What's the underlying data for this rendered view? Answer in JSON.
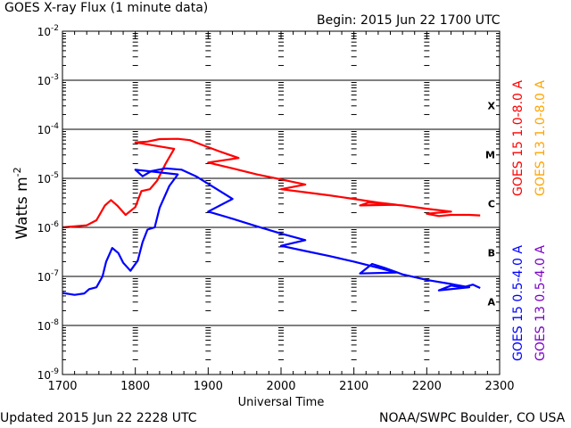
{
  "header": {
    "title": "GOES X-ray Flux (1 minute data)",
    "begin": "Begin: 2015 Jun 22 1700 UTC"
  },
  "footer": {
    "updated": "Updated 2015 Jun 22 2228 UTC",
    "credit": "NOAA/SWPC Boulder, CO USA"
  },
  "colors": {
    "goes15_long": "#ff0000",
    "goes13_long": "#ffa500",
    "goes15_short": "#0000ff",
    "goes13_short": "#7a00c8",
    "frame": "#000000"
  },
  "chart_data": {
    "type": "line",
    "xlabel": "Universal Time",
    "ylabel_base": "Watts m",
    "ylabel_exp": "-2",
    "y_scale": "log",
    "ylim": [
      "1e-9",
      "1e-2"
    ],
    "xlim": [
      1700,
      2300
    ],
    "x_ticks": [
      "1700",
      "1800",
      "1900",
      "2000",
      "2100",
      "2200",
      "2300"
    ],
    "y_ticks": [
      {
        "exp": -9,
        "label_base": "10",
        "label_exp": "-9"
      },
      {
        "exp": -8,
        "label_base": "10",
        "label_exp": "-8"
      },
      {
        "exp": -7,
        "label_base": "10",
        "label_exp": "-7"
      },
      {
        "exp": -6,
        "label_base": "10",
        "label_exp": "-6"
      },
      {
        "exp": -5,
        "label_base": "10",
        "label_exp": "-5"
      },
      {
        "exp": -4,
        "label_base": "10",
        "label_exp": "-4"
      },
      {
        "exp": -3,
        "label_base": "10",
        "label_exp": "-3"
      },
      {
        "exp": -2,
        "label_base": "10",
        "label_exp": "-2"
      }
    ],
    "flare_classes": [
      {
        "label": "A",
        "exp": -8
      },
      {
        "label": "B",
        "exp": -7
      },
      {
        "label": "C",
        "exp": -6
      },
      {
        "label": "M",
        "exp": -5
      },
      {
        "label": "X",
        "exp": -4
      }
    ],
    "grid_lines_y_exp": [
      -8,
      -7,
      -6,
      -5,
      -4,
      -3
    ],
    "legend_placement": "right, vertical",
    "legend": [
      {
        "label": "GOES 15 1.0-8.0 A",
        "color": "#ff0000"
      },
      {
        "label": "GOES 13 1.0-8.0 A",
        "color": "#ffa500"
      },
      {
        "label": "GOES 15 0.5-4.0 A",
        "color": "#0000ff"
      },
      {
        "label": "GOES 13 0.5-4.0 A",
        "color": "#7a00c8"
      }
    ],
    "series": [
      {
        "name": "GOES 15 1.0-8.0 A",
        "color": "#ff0000",
        "points": [
          [
            "1700",
            "1.0e-6"
          ],
          [
            "1720",
            "1.1e-6"
          ],
          [
            "1728",
            "1.4e-6"
          ],
          [
            "1735",
            "2.8e-6"
          ],
          [
            "1740",
            "3.6e-6"
          ],
          [
            "1745",
            "2.8e-6"
          ],
          [
            "1752",
            "1.8e-6"
          ],
          [
            "1760",
            "2.6e-6"
          ],
          [
            "1765",
            "5.5e-6"
          ],
          [
            "1772",
            "6.0e-6"
          ],
          [
            "1778",
            "9.0e-6"
          ],
          [
            "1785",
            "2.0e-5"
          ],
          [
            "1792",
            "4.0e-5"
          ],
          [
            "1800",
            "5.4e-5"
          ],
          [
            "1810",
            "5.6e-5"
          ],
          [
            "1820",
            "6.3e-5"
          ],
          [
            "1835",
            "6.4e-5"
          ],
          [
            "1845",
            "6.0e-5"
          ],
          [
            "1855",
            "4.8e-5"
          ],
          [
            "1870",
            "3.5e-5"
          ],
          [
            "1885",
            "2.6e-5"
          ],
          [
            "1900",
            "2.1e-5"
          ],
          [
            "1920",
            "1.6e-5"
          ],
          [
            "1940",
            "1.2e-5"
          ],
          [
            "1960",
            "9.5e-6"
          ],
          [
            "1980",
            "7.5e-6"
          ],
          [
            "2000",
            "6.0e-6"
          ],
          [
            "2020",
            "5.2e-6"
          ],
          [
            "2040",
            "4.5e-6"
          ],
          [
            "2060",
            "3.8e-6"
          ],
          [
            "2080",
            "3.2e-6"
          ],
          [
            "2095",
            "2.9e-6"
          ],
          [
            "2105",
            "2.8e-6"
          ],
          [
            "2112",
            "3.2e-6"
          ],
          [
            "2120",
            "3.1e-6"
          ],
          [
            "2140",
            "2.8e-6"
          ],
          [
            "2160",
            "2.4e-6"
          ],
          [
            "2180",
            "2.1e-6"
          ],
          [
            "2200",
            "1.9e-6"
          ],
          [
            "2210",
            "1.7e-6"
          ],
          [
            "2220",
            "1.8e-6"
          ],
          [
            "2235",
            "1.8e-6"
          ],
          [
            "2244",
            "1.75e-6"
          ]
        ]
      },
      {
        "name": "GOES 15 0.5-4.0 A",
        "color": "#0000ff",
        "points": [
          [
            "1700",
            "4.6e-8"
          ],
          [
            "1710",
            "4.2e-8"
          ],
          [
            "1718",
            "4.5e-8"
          ],
          [
            "1722",
            "5.5e-8"
          ],
          [
            "1728",
            "6.0e-8"
          ],
          [
            "1733",
            "1.0e-7"
          ],
          [
            "1736",
            "2.0e-7"
          ],
          [
            "1741",
            "3.8e-7"
          ],
          [
            "1746",
            "3.0e-7"
          ],
          [
            "1750",
            "1.9e-7"
          ],
          [
            "1756",
            "1.3e-7"
          ],
          [
            "1762",
            "2.1e-7"
          ],
          [
            "1766",
            "5.0e-7"
          ],
          [
            "1770",
            "9.0e-7"
          ],
          [
            "1776",
            "1.0e-6"
          ],
          [
            "1780",
            "2.5e-6"
          ],
          [
            "1788",
            "7.0e-6"
          ],
          [
            "1795",
            "1.2e-5"
          ],
          [
            "1800",
            "1.5e-5"
          ],
          [
            "1806",
            "1.1e-5"
          ],
          [
            "1813",
            "1.4e-5"
          ],
          [
            "1825",
            "1.6e-5"
          ],
          [
            "1838",
            "1.5e-5"
          ],
          [
            "1850",
            "1.1e-5"
          ],
          [
            "1865",
            "6.5e-6"
          ],
          [
            "1880",
            "3.8e-6"
          ],
          [
            "1900",
            "2.1e-6"
          ],
          [
            "1920",
            "1.5e-6"
          ],
          [
            "1940",
            "1.05e-6"
          ],
          [
            "1960",
            "7.5e-7"
          ],
          [
            "1980",
            "5.5e-7"
          ],
          [
            "2000",
            "4.2e-7"
          ],
          [
            "2020",
            "3.3e-7"
          ],
          [
            "2040",
            "2.6e-7"
          ],
          [
            "2060",
            "2.0e-7"
          ],
          [
            "2080",
            "1.5e-7"
          ],
          [
            "2095",
            "1.2e-7"
          ],
          [
            "2105",
            "1.15e-7"
          ],
          [
            "2115",
            "1.8e-7"
          ],
          [
            "2125",
            "1.5e-7"
          ],
          [
            "2140",
            "1.1e-7"
          ],
          [
            "2160",
            "8.5e-8"
          ],
          [
            "2180",
            "7.0e-8"
          ],
          [
            "2195",
            "6.0e-8"
          ],
          [
            "2210",
            "5.2e-8"
          ],
          [
            "2220",
            "6.5e-8"
          ],
          [
            "2230",
            "6.0e-8"
          ],
          [
            "2238",
            "6.8e-8"
          ],
          [
            "2244",
            "5.8e-8"
          ]
        ]
      }
    ]
  }
}
